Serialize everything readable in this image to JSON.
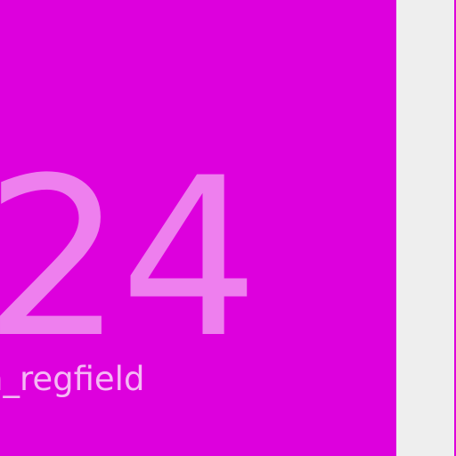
{
  "tile": {
    "number": "24",
    "label": "n_regfield",
    "background_color": "#dd00dd",
    "number_color": "#ee7fee",
    "label_color": "#f5b8f5"
  },
  "page": {
    "background_color": "#eeeeee"
  }
}
